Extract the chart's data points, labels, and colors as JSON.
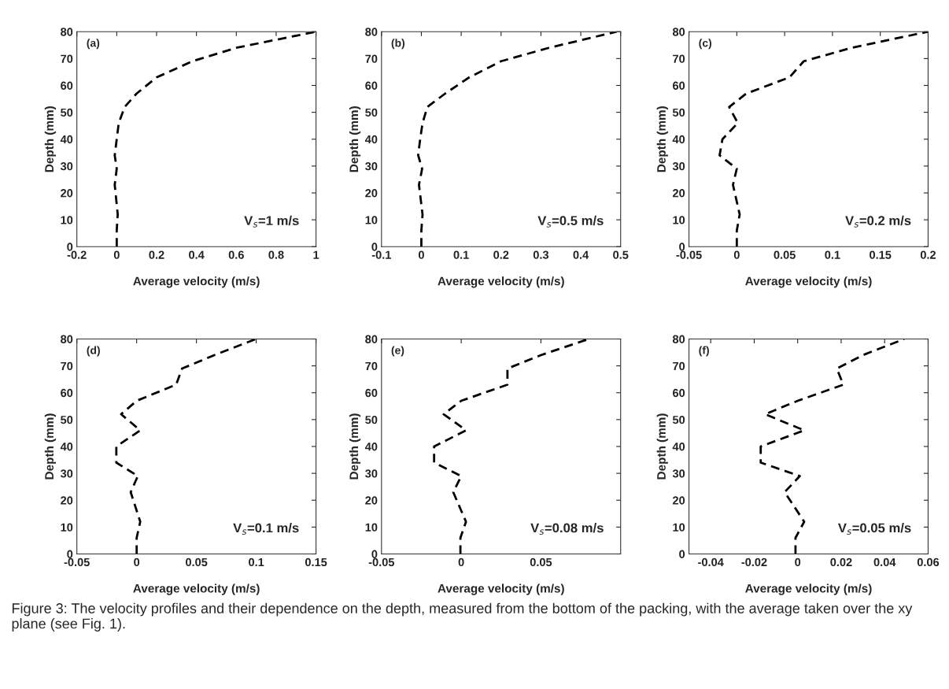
{
  "chart_data": [
    {
      "type": "line",
      "xlabel": "Average velocity (m/s)",
      "ylabel": "Depth (mm)",
      "annotations": [
        "(a)",
        "V$_{s}$=1 m/s"
      ],
      "xlim": [
        -0.2,
        1
      ],
      "xticks": [
        -0.2,
        0,
        0.2,
        0.4,
        0.6,
        0.8,
        1
      ],
      "ylim": [
        0,
        80
      ],
      "yticks": [
        0,
        10,
        20,
        30,
        40,
        50,
        60,
        70,
        80
      ],
      "grid": false,
      "line_style": "dashed",
      "series": [
        {
          "color": "#000000",
          "x": [
            0,
            0,
            0.005,
            -0.01,
            0,
            -0.01,
            0,
            0.01,
            0.04,
            0.1,
            0.2,
            0.38,
            0.6,
            1.0
          ],
          "values": [
            0,
            6,
            12,
            23,
            29,
            34,
            40,
            46,
            52,
            57,
            63,
            69,
            74,
            80
          ]
        }
      ]
    },
    {
      "type": "line",
      "xlabel": "Average velocity (m/s)",
      "ylabel": "Depth (mm)",
      "annotations": [
        "(b)",
        "V$_{s}$=0.5 m/s"
      ],
      "xlim": [
        -0.1,
        0.5
      ],
      "xticks": [
        -0.1,
        0,
        0.1,
        0.2,
        0.3,
        0.4,
        0.5
      ],
      "ylim": [
        0,
        80
      ],
      "yticks": [
        0,
        10,
        20,
        30,
        40,
        50,
        60,
        70,
        80
      ],
      "grid": false,
      "line_style": "dashed",
      "series": [
        {
          "color": "#000000",
          "x": [
            0,
            0,
            0.003,
            -0.006,
            0.002,
            -0.008,
            -0.003,
            0.003,
            0.015,
            0.06,
            0.12,
            0.2,
            0.32,
            0.49
          ],
          "values": [
            0,
            6,
            12,
            23,
            29,
            34,
            40,
            46,
            52,
            57,
            63,
            69,
            74,
            80
          ]
        }
      ]
    },
    {
      "type": "line",
      "xlabel": "Average velocity (m/s)",
      "ylabel": "Depth (mm)",
      "annotations": [
        "(c)",
        "V$_{s}$=0.2 m/s"
      ],
      "xlim": [
        -0.05,
        0.2
      ],
      "xticks": [
        -0.05,
        0,
        0.05,
        0.1,
        0.15,
        0.2
      ],
      "ylim": [
        0,
        80
      ],
      "yticks": [
        0,
        10,
        20,
        30,
        40,
        50,
        60,
        70,
        80
      ],
      "grid": false,
      "line_style": "dashed",
      "series": [
        {
          "color": "#000000",
          "x": [
            0,
            0,
            0.003,
            -0.004,
            0,
            -0.018,
            -0.015,
            0.001,
            -0.008,
            0.01,
            0.055,
            0.07,
            0.12,
            0.2
          ],
          "values": [
            0,
            6,
            12,
            23,
            29,
            34,
            40,
            46,
            52,
            57,
            63,
            69,
            74,
            80
          ]
        }
      ]
    },
    {
      "type": "line",
      "xlabel": "Average velocity (m/s)",
      "ylabel": "Depth (mm)",
      "annotations": [
        "(d)",
        "V$_{s}$=0.1 m/s"
      ],
      "xlim": [
        -0.05,
        0.15
      ],
      "xticks": [
        -0.05,
        0,
        0.05,
        0.1,
        0.15
      ],
      "ylim": [
        0,
        80
      ],
      "yticks": [
        0,
        10,
        20,
        30,
        40,
        50,
        60,
        70,
        80
      ],
      "grid": false,
      "line_style": "dashed",
      "series": [
        {
          "color": "#000000",
          "x": [
            0,
            0,
            0.003,
            -0.005,
            0.001,
            -0.017,
            -0.017,
            0.003,
            -0.013,
            0,
            0.033,
            0.038,
            0.065,
            0.1
          ],
          "values": [
            0,
            6,
            12,
            23,
            29,
            34,
            40,
            46,
            52,
            57,
            63,
            69,
            74,
            80
          ]
        }
      ]
    },
    {
      "type": "line",
      "xlabel": "Average velocity (m/s)",
      "ylabel": "Depth (mm)",
      "annotations": [
        "(e)",
        "V$_{s}$=0.08 m/s"
      ],
      "xlim": [
        -0.05,
        0.1
      ],
      "xticks": [
        -0.05,
        0,
        0.05
      ],
      "ylim": [
        0,
        80
      ],
      "yticks": [
        0,
        10,
        20,
        30,
        40,
        50,
        60,
        70,
        80
      ],
      "grid": false,
      "line_style": "dashed",
      "series": [
        {
          "color": "#000000",
          "x": [
            -0.0005,
            -0.0005,
            0.003,
            -0.005,
            0,
            -0.017,
            -0.017,
            0.003,
            -0.011,
            0,
            0.029,
            0.029,
            0.05,
            0.08
          ],
          "values": [
            0,
            6,
            12,
            23,
            29,
            34,
            40,
            46,
            52,
            57,
            63,
            69,
            74,
            80
          ]
        }
      ]
    },
    {
      "type": "line",
      "xlabel": "Average velocity (m/s)",
      "ylabel": "Depth (mm)",
      "annotations": [
        "(f)",
        "V$_{s}$=0.05 m/s",
        "Figure 3: The velocity profiles and their dependence on the depth, measured from the bottom of the packing, with the average taken over the xy plane (see Fig. 1)."
      ],
      "xlim": [
        -0.05,
        0.06
      ],
      "xticks": [
        -0.04,
        -0.02,
        0,
        0.02,
        0.04,
        0.06
      ],
      "ylim": [
        0,
        80
      ],
      "yticks": [
        0,
        10,
        20,
        30,
        40,
        50,
        60,
        70,
        80
      ],
      "grid": false,
      "line_style": "dashed",
      "series": [
        {
          "color": "#000000",
          "x": [
            -0.001,
            -0.001,
            0.003,
            -0.006,
            0.001,
            -0.017,
            -0.017,
            0.003,
            -0.015,
            0,
            0.021,
            0.018,
            0.03,
            0.049
          ],
          "values": [
            0,
            6,
            12,
            23,
            29,
            34,
            40,
            46,
            52,
            57,
            63,
            69,
            74,
            80
          ]
        }
      ]
    }
  ]
}
